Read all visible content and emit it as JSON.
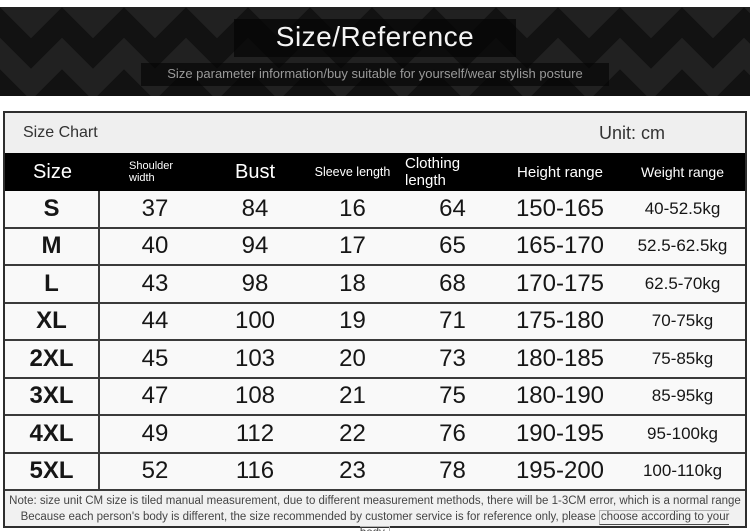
{
  "banner": {
    "title": "Size/Reference",
    "subtitle": "Size parameter information/buy suitable for yourself/wear stylish posture"
  },
  "chart_header": {
    "label": "Size Chart",
    "unit": "Unit: cm"
  },
  "table": {
    "columns": [
      {
        "id": "size",
        "label": "Size"
      },
      {
        "id": "shoulder",
        "label": "Shoulder width"
      },
      {
        "id": "bust",
        "label": "Bust"
      },
      {
        "id": "sleeve",
        "label": "Sleeve length"
      },
      {
        "id": "clothing",
        "label": "Clothing length"
      },
      {
        "id": "height",
        "label": "Height range"
      },
      {
        "id": "weight",
        "label": "Weight range"
      }
    ],
    "rows": [
      {
        "size": "S",
        "shoulder": "37",
        "bust": "84",
        "sleeve": "16",
        "clothing": "64",
        "height": "150-165",
        "weight": "40-52.5kg"
      },
      {
        "size": "M",
        "shoulder": "40",
        "bust": "94",
        "sleeve": "17",
        "clothing": "65",
        "height": "165-170",
        "weight": "52.5-62.5kg"
      },
      {
        "size": "L",
        "shoulder": "43",
        "bust": "98",
        "sleeve": "18",
        "clothing": "68",
        "height": "170-175",
        "weight": "62.5-70kg"
      },
      {
        "size": "XL",
        "shoulder": "44",
        "bust": "100",
        "sleeve": "19",
        "clothing": "71",
        "height": "175-180",
        "weight": "70-75kg"
      },
      {
        "size": "2XL",
        "shoulder": "45",
        "bust": "103",
        "sleeve": "20",
        "clothing": "73",
        "height": "180-185",
        "weight": "75-85kg"
      },
      {
        "size": "3XL",
        "shoulder": "47",
        "bust": "108",
        "sleeve": "21",
        "clothing": "75",
        "height": "180-190",
        "weight": "85-95kg"
      },
      {
        "size": "4XL",
        "shoulder": "49",
        "bust": "112",
        "sleeve": "22",
        "clothing": "76",
        "height": "190-195",
        "weight": "95-100kg"
      },
      {
        "size": "5XL",
        "shoulder": "52",
        "bust": "116",
        "sleeve": "23",
        "clothing": "78",
        "height": "195-200",
        "weight": "100-110kg"
      }
    ]
  },
  "note": {
    "line1": "Note: size unit CM size is tiled manual measurement, due to different measurement methods, there will be 1-3CM error, which is a normal range",
    "line2_prefix": "Because each person's body is different, the size recommended by customer service is for reference only, please ",
    "line2_highlight": "choose according to your body."
  },
  "colors": {
    "banner_bg": "#121212",
    "header_row_bg": "#000000",
    "table_row_bg": "#f9f9f9",
    "bar_bg": "#efefef",
    "border": "#3b3b3b"
  }
}
